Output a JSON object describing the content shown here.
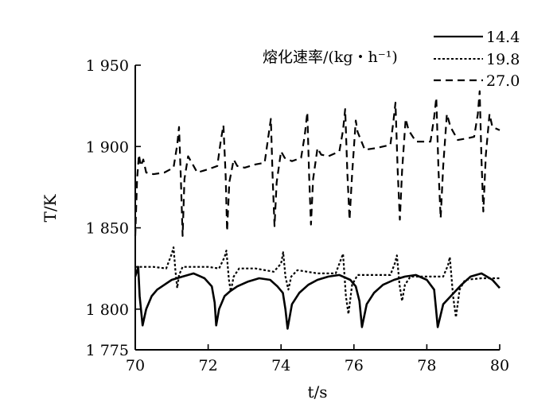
{
  "chart_data": {
    "type": "line",
    "title": "",
    "xlabel": "t/s",
    "ylabel": "T/K",
    "xlim": [
      70,
      80
    ],
    "ylim": [
      1775,
      1950
    ],
    "x_ticks": [
      70,
      72,
      74,
      76,
      78,
      80
    ],
    "x_tick_labels": [
      "70",
      "72",
      "74",
      "76",
      "78",
      "80"
    ],
    "y_ticks": [
      1775,
      1800,
      1850,
      1900,
      1950
    ],
    "y_tick_labels": [
      "1 775",
      "1 800",
      "1 850",
      "1 900",
      "1 950"
    ],
    "legend_title": "熔化速率/(kg・h⁻¹)",
    "legend_position": "top-right",
    "grid": false,
    "series": [
      {
        "name": "14.4",
        "style": "solid",
        "points": [
          [
            70.0,
            1820
          ],
          [
            70.08,
            1826
          ],
          [
            70.12,
            1808
          ],
          [
            70.2,
            1790
          ],
          [
            70.3,
            1800
          ],
          [
            70.45,
            1808
          ],
          [
            70.6,
            1812
          ],
          [
            70.8,
            1815
          ],
          [
            71.0,
            1818
          ],
          [
            71.3,
            1820
          ],
          [
            71.6,
            1822
          ],
          [
            71.9,
            1819
          ],
          [
            72.1,
            1814
          ],
          [
            72.18,
            1804
          ],
          [
            72.22,
            1790
          ],
          [
            72.3,
            1800
          ],
          [
            72.45,
            1808
          ],
          [
            72.6,
            1811
          ],
          [
            72.8,
            1814
          ],
          [
            73.1,
            1817
          ],
          [
            73.4,
            1819
          ],
          [
            73.7,
            1818
          ],
          [
            73.9,
            1814
          ],
          [
            74.05,
            1810
          ],
          [
            74.12,
            1800
          ],
          [
            74.18,
            1788
          ],
          [
            74.3,
            1803
          ],
          [
            74.5,
            1810
          ],
          [
            74.75,
            1815
          ],
          [
            75.0,
            1818
          ],
          [
            75.3,
            1820
          ],
          [
            75.6,
            1821
          ],
          [
            75.9,
            1818
          ],
          [
            76.05,
            1814
          ],
          [
            76.15,
            1805
          ],
          [
            76.22,
            1789
          ],
          [
            76.35,
            1803
          ],
          [
            76.55,
            1810
          ],
          [
            76.8,
            1815
          ],
          [
            77.1,
            1818
          ],
          [
            77.4,
            1820
          ],
          [
            77.7,
            1821
          ],
          [
            78.0,
            1818
          ],
          [
            78.2,
            1812
          ],
          [
            78.25,
            1801
          ],
          [
            78.3,
            1789
          ],
          [
            78.45,
            1803
          ],
          [
            78.7,
            1809
          ],
          [
            78.95,
            1815
          ],
          [
            79.2,
            1820
          ],
          [
            79.5,
            1822
          ],
          [
            79.8,
            1818
          ],
          [
            80.0,
            1813
          ]
        ]
      },
      {
        "name": "19.8",
        "style": "dotted",
        "points": [
          [
            70.0,
            1826
          ],
          [
            70.5,
            1826
          ],
          [
            70.85,
            1825
          ],
          [
            71.0,
            1834
          ],
          [
            71.05,
            1838
          ],
          [
            71.1,
            1824
          ],
          [
            71.15,
            1813
          ],
          [
            71.2,
            1821
          ],
          [
            71.3,
            1826
          ],
          [
            71.6,
            1826
          ],
          [
            72.0,
            1826
          ],
          [
            72.3,
            1825
          ],
          [
            72.45,
            1832
          ],
          [
            72.5,
            1836
          ],
          [
            72.57,
            1818
          ],
          [
            72.62,
            1811
          ],
          [
            72.7,
            1820
          ],
          [
            72.85,
            1825
          ],
          [
            73.3,
            1825
          ],
          [
            73.8,
            1823
          ],
          [
            74.0,
            1828
          ],
          [
            74.06,
            1835
          ],
          [
            74.12,
            1820
          ],
          [
            74.2,
            1812
          ],
          [
            74.28,
            1820
          ],
          [
            74.45,
            1824
          ],
          [
            75.0,
            1822
          ],
          [
            75.5,
            1822
          ],
          [
            75.65,
            1831
          ],
          [
            75.7,
            1834
          ],
          [
            75.78,
            1808
          ],
          [
            75.85,
            1797
          ],
          [
            75.95,
            1815
          ],
          [
            76.1,
            1821
          ],
          [
            76.6,
            1821
          ],
          [
            77.0,
            1821
          ],
          [
            77.12,
            1828
          ],
          [
            77.18,
            1833
          ],
          [
            77.25,
            1815
          ],
          [
            77.32,
            1805
          ],
          [
            77.4,
            1815
          ],
          [
            77.55,
            1820
          ],
          [
            78.0,
            1820
          ],
          [
            78.45,
            1820
          ],
          [
            78.58,
            1827
          ],
          [
            78.63,
            1832
          ],
          [
            78.72,
            1808
          ],
          [
            78.8,
            1795
          ],
          [
            78.9,
            1812
          ],
          [
            79.05,
            1818
          ],
          [
            79.5,
            1819
          ],
          [
            80.0,
            1819
          ]
        ]
      },
      {
        "name": "27.0",
        "style": "dashed",
        "points": [
          [
            70.0,
            1845
          ],
          [
            70.05,
            1880
          ],
          [
            70.1,
            1895
          ],
          [
            70.15,
            1888
          ],
          [
            70.22,
            1892
          ],
          [
            70.3,
            1884
          ],
          [
            70.5,
            1883
          ],
          [
            70.8,
            1884
          ],
          [
            71.05,
            1887
          ],
          [
            71.15,
            1901
          ],
          [
            71.2,
            1912
          ],
          [
            71.25,
            1880
          ],
          [
            71.3,
            1845
          ],
          [
            71.35,
            1880
          ],
          [
            71.45,
            1894
          ],
          [
            71.55,
            1890
          ],
          [
            71.7,
            1884
          ],
          [
            72.0,
            1886
          ],
          [
            72.25,
            1888
          ],
          [
            72.35,
            1904
          ],
          [
            72.42,
            1913
          ],
          [
            72.48,
            1882
          ],
          [
            72.52,
            1848
          ],
          [
            72.58,
            1878
          ],
          [
            72.7,
            1892
          ],
          [
            72.8,
            1888
          ],
          [
            73.0,
            1887
          ],
          [
            73.3,
            1889
          ],
          [
            73.55,
            1890
          ],
          [
            73.65,
            1906
          ],
          [
            73.72,
            1917
          ],
          [
            73.77,
            1880
          ],
          [
            73.82,
            1851
          ],
          [
            73.88,
            1878
          ],
          [
            74.0,
            1897
          ],
          [
            74.1,
            1893
          ],
          [
            74.3,
            1891
          ],
          [
            74.55,
            1893
          ],
          [
            74.65,
            1907
          ],
          [
            74.72,
            1921
          ],
          [
            74.77,
            1882
          ],
          [
            74.82,
            1852
          ],
          [
            74.88,
            1880
          ],
          [
            75.0,
            1899
          ],
          [
            75.1,
            1895
          ],
          [
            75.3,
            1894
          ],
          [
            75.6,
            1897
          ],
          [
            75.7,
            1910
          ],
          [
            75.76,
            1923
          ],
          [
            75.82,
            1883
          ],
          [
            75.88,
            1855
          ],
          [
            75.95,
            1883
          ],
          [
            76.05,
            1916
          ],
          [
            76.1,
            1909
          ],
          [
            76.3,
            1898
          ],
          [
            76.6,
            1899
          ],
          [
            77.0,
            1901
          ],
          [
            77.08,
            1915
          ],
          [
            77.14,
            1927
          ],
          [
            77.2,
            1885
          ],
          [
            77.26,
            1855
          ],
          [
            77.32,
            1885
          ],
          [
            77.42,
            1917
          ],
          [
            77.5,
            1910
          ],
          [
            77.7,
            1903
          ],
          [
            78.0,
            1903
          ],
          [
            78.1,
            1903
          ],
          [
            78.2,
            1918
          ],
          [
            78.26,
            1930
          ],
          [
            78.32,
            1885
          ],
          [
            78.38,
            1856
          ],
          [
            78.45,
            1888
          ],
          [
            78.55,
            1920
          ],
          [
            78.65,
            1912
          ],
          [
            78.85,
            1904
          ],
          [
            79.1,
            1905
          ],
          [
            79.3,
            1906
          ],
          [
            79.4,
            1920
          ],
          [
            79.45,
            1934
          ],
          [
            79.5,
            1892
          ],
          [
            79.55,
            1860
          ],
          [
            79.62,
            1895
          ],
          [
            79.72,
            1920
          ],
          [
            79.8,
            1912
          ],
          [
            80.0,
            1910
          ]
        ]
      }
    ]
  }
}
